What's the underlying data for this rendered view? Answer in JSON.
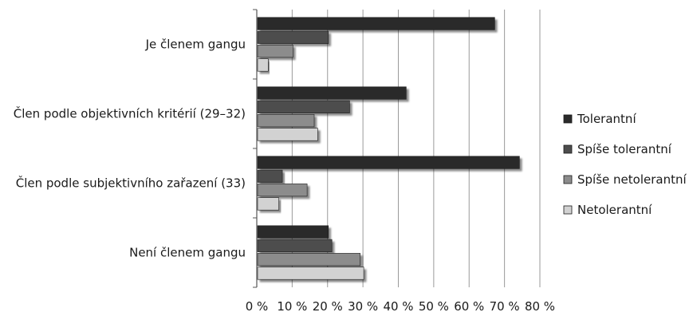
{
  "chart_data": {
    "type": "bar",
    "orientation": "horizontal",
    "categories": [
      "Je členem gangu",
      "Člen podle objektivních kritérií (29–32)",
      "Člen podle subjektivního zařazení (33)",
      "Není členem gangu"
    ],
    "series": [
      {
        "name": "Tolerantní",
        "color": "#2b2b2b",
        "values": [
          67,
          42,
          74,
          20
        ]
      },
      {
        "name": "Spíše tolerantní",
        "color": "#4d4d4d",
        "values": [
          20,
          26,
          7,
          21
        ]
      },
      {
        "name": "Spíše netolerantní",
        "color": "#8c8c8c",
        "values": [
          10,
          16,
          14,
          29
        ]
      },
      {
        "name": "Netolerantní",
        "color": "#d2d2d2",
        "values": [
          3,
          17,
          6,
          30
        ]
      }
    ],
    "xlim": [
      0,
      80
    ],
    "xticks": [
      "0 %",
      "10 %",
      "20 %",
      "30 %",
      "40 %",
      "50 %",
      "60 %",
      "70 %",
      "80 %"
    ],
    "grid": true,
    "legend": "right"
  }
}
